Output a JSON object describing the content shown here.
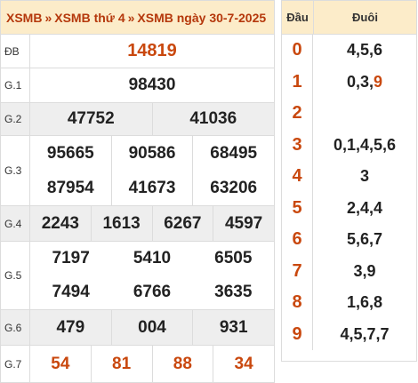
{
  "header": {
    "crumb1": "XSMB",
    "crumb2": "XSMB thứ 4",
    "crumb3": "XSMB ngày 30-7-2025",
    "separator": "»"
  },
  "prizes": {
    "db": {
      "label": "ĐB",
      "numbers": [
        "14819"
      ]
    },
    "g1": {
      "label": "G.1",
      "numbers": [
        "98430"
      ]
    },
    "g2": {
      "label": "G.2",
      "numbers": [
        "47752",
        "41036"
      ]
    },
    "g3": {
      "label": "G.3",
      "numbers": [
        "95665",
        "90586",
        "68495",
        "87954",
        "41673",
        "63206"
      ]
    },
    "g4": {
      "label": "G.4",
      "numbers": [
        "2243",
        "1613",
        "6267",
        "4597"
      ]
    },
    "g5": {
      "label": "G.5",
      "numbers": [
        "7197",
        "5410",
        "6505",
        "7494",
        "6766",
        "3635"
      ]
    },
    "g6": {
      "label": "G.6",
      "numbers": [
        "479",
        "004",
        "931"
      ]
    },
    "g7": {
      "label": "G.7",
      "numbers": [
        "54",
        "81",
        "88",
        "34"
      ]
    }
  },
  "loto": {
    "head_col": "Đầu",
    "tail_col": "Đuôi",
    "rows": [
      {
        "head": "0",
        "tail": "4,5,6"
      },
      {
        "head": "1",
        "tail_plain": "0,3,",
        "tail_hl": "9"
      },
      {
        "head": "2",
        "tail": ""
      },
      {
        "head": "3",
        "tail": "0,1,4,5,6"
      },
      {
        "head": "4",
        "tail": "3"
      },
      {
        "head": "5",
        "tail": "2,4,4"
      },
      {
        "head": "6",
        "tail": "5,6,7"
      },
      {
        "head": "7",
        "tail": "3,9"
      },
      {
        "head": "8",
        "tail": "1,6,8"
      },
      {
        "head": "9",
        "tail": "4,5,7,7"
      }
    ]
  },
  "colors": {
    "accent": "#c9480e",
    "header_bg": "#fcecc9",
    "row_gray": "#eeeeee"
  }
}
